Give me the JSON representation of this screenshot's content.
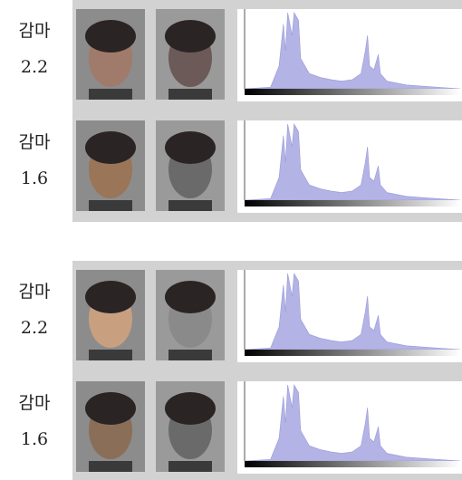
{
  "rows": [
    {
      "label": "감마",
      "value": "2.2"
    },
    {
      "label": "감마",
      "value": "1.6"
    },
    {
      "label": "감마",
      "value": "2.2"
    },
    {
      "label": "감마",
      "value": "1.6"
    }
  ]
}
